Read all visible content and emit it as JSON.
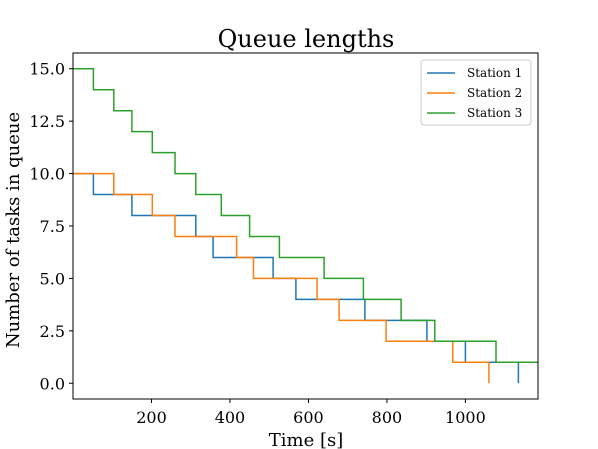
{
  "chart_data": {
    "type": "line",
    "step": "post",
    "title": "Queue lengths",
    "xlabel": "Time [s]",
    "ylabel": "Number of tasks in queue",
    "xlim": [
      0,
      1185
    ],
    "ylim": [
      -0.75,
      15.75
    ],
    "xticks": [
      200,
      400,
      600,
      800,
      1000
    ],
    "xtick_labels": [
      "200",
      "400",
      "600",
      "800",
      "1000"
    ],
    "yticks": [
      0,
      2.5,
      5,
      7.5,
      10,
      12.5,
      15
    ],
    "ytick_labels": [
      "0.0",
      "2.5",
      "5.0",
      "7.5",
      "10.0",
      "12.5",
      "15.0"
    ],
    "grid": false,
    "legend_position": "top-right",
    "series": [
      {
        "name": "Station 1",
        "color": "#1f77b4",
        "points": [
          [
            0,
            10
          ],
          [
            52,
            10
          ],
          [
            52,
            9
          ],
          [
            150,
            9
          ],
          [
            150,
            8
          ],
          [
            313,
            8
          ],
          [
            313,
            7
          ],
          [
            357,
            7
          ],
          [
            357,
            6
          ],
          [
            510,
            6
          ],
          [
            510,
            5
          ],
          [
            568,
            5
          ],
          [
            568,
            4
          ],
          [
            744,
            4
          ],
          [
            744,
            3
          ],
          [
            902,
            3
          ],
          [
            902,
            2
          ],
          [
            1000,
            2
          ],
          [
            1000,
            1
          ],
          [
            1135,
            1
          ],
          [
            1135,
            0
          ]
        ]
      },
      {
        "name": "Station 2",
        "color": "#ff7f0e",
        "points": [
          [
            0,
            10
          ],
          [
            104,
            10
          ],
          [
            104,
            9
          ],
          [
            202,
            9
          ],
          [
            202,
            8
          ],
          [
            260,
            8
          ],
          [
            260,
            7
          ],
          [
            417,
            7
          ],
          [
            417,
            6
          ],
          [
            460,
            6
          ],
          [
            460,
            5
          ],
          [
            622,
            5
          ],
          [
            622,
            4
          ],
          [
            678,
            4
          ],
          [
            678,
            3
          ],
          [
            798,
            3
          ],
          [
            798,
            2
          ],
          [
            968,
            2
          ],
          [
            968,
            1
          ],
          [
            1060,
            1
          ],
          [
            1060,
            0
          ]
        ]
      },
      {
        "name": "Station 3",
        "color": "#2ca02c",
        "points": [
          [
            0,
            15
          ],
          [
            52,
            15
          ],
          [
            52,
            14
          ],
          [
            104,
            14
          ],
          [
            104,
            13
          ],
          [
            150,
            13
          ],
          [
            150,
            12
          ],
          [
            202,
            12
          ],
          [
            202,
            11
          ],
          [
            260,
            11
          ],
          [
            260,
            10
          ],
          [
            313,
            10
          ],
          [
            313,
            9
          ],
          [
            378,
            9
          ],
          [
            378,
            8
          ],
          [
            450,
            8
          ],
          [
            450,
            7
          ],
          [
            526,
            7
          ],
          [
            526,
            6
          ],
          [
            640,
            6
          ],
          [
            640,
            5
          ],
          [
            740,
            5
          ],
          [
            740,
            4
          ],
          [
            836,
            4
          ],
          [
            836,
            3
          ],
          [
            922,
            3
          ],
          [
            922,
            2
          ],
          [
            1078,
            2
          ],
          [
            1078,
            1
          ],
          [
            1185,
            1
          ]
        ]
      }
    ]
  }
}
